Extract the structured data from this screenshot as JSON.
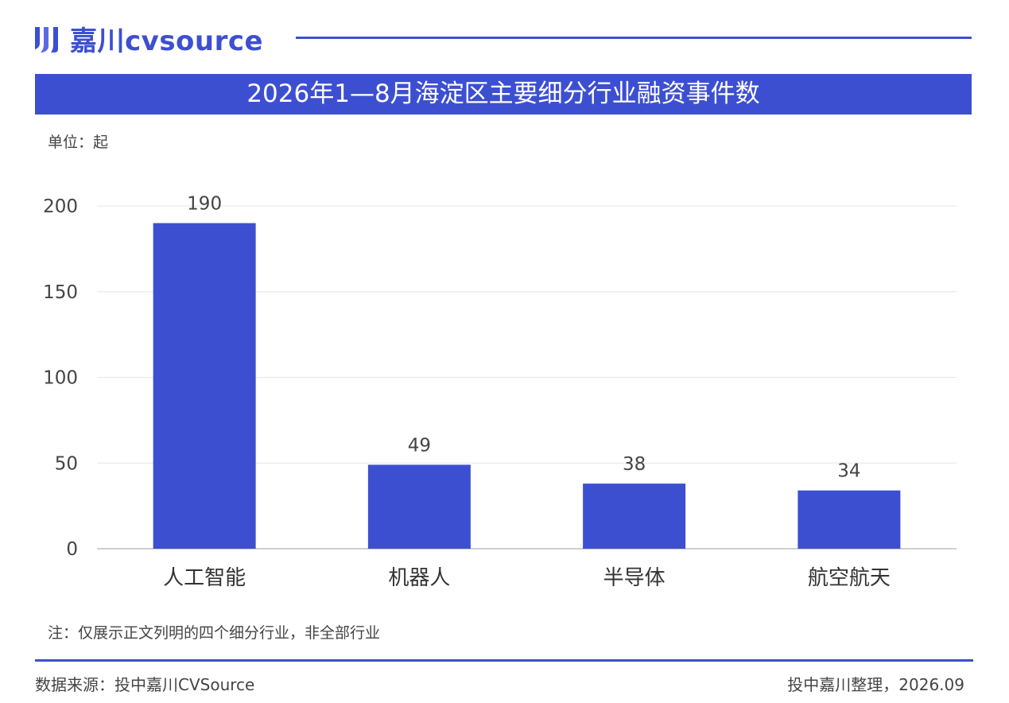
{
  "header": {
    "logo_text": "嘉川cvsource",
    "title": "2026年1—8月海淀区主要细分行业融资事件数",
    "unit": "单位：起"
  },
  "colors": {
    "accent": "#3d4fd1",
    "bar": "#3d4fd1"
  },
  "chart_data": {
    "type": "bar",
    "title": "2026年1—8月海淀区主要细分行业融资事件数",
    "ylabel": "单位：起",
    "xlabel": "",
    "categories": [
      "人工智能",
      "机器人",
      "半导体",
      "航空航天"
    ],
    "values": [
      190,
      49,
      38,
      34
    ],
    "ylim": [
      0,
      200
    ],
    "yticks": [
      0,
      50,
      100,
      150,
      200
    ],
    "grid": true,
    "legend": "none"
  },
  "footer": {
    "note": "注：仅展示正文列明的四个细分行业，非全部行业",
    "source": "数据来源：投中嘉川CVSource",
    "credit": "投中嘉川整理，2026.09"
  }
}
